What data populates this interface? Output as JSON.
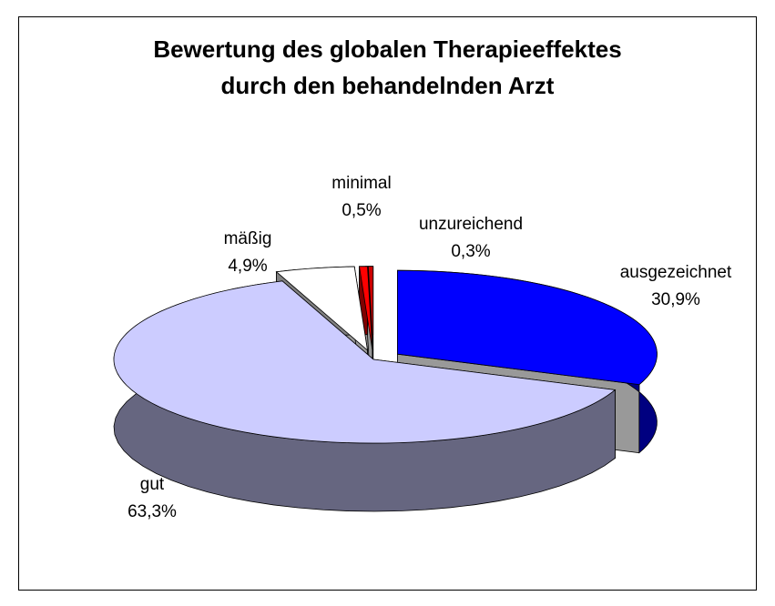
{
  "chart_data": {
    "type": "pie",
    "title": "Bewertung des globalen Therapieeffektes\ndurch den behandelnden Arzt",
    "categories": [
      "ausgezeichnet",
      "gut",
      "mäßig",
      "minimal",
      "unzureichend"
    ],
    "values": [
      30.9,
      63.3,
      4.9,
      0.5,
      0.3
    ],
    "value_labels": [
      "30,9%",
      "63,3%",
      "4,9%",
      "0,5%",
      "0,3%"
    ],
    "colors": [
      "#0000ff",
      "#ccccff",
      "#ffffff",
      "#ff0000",
      "#cc0000"
    ]
  }
}
